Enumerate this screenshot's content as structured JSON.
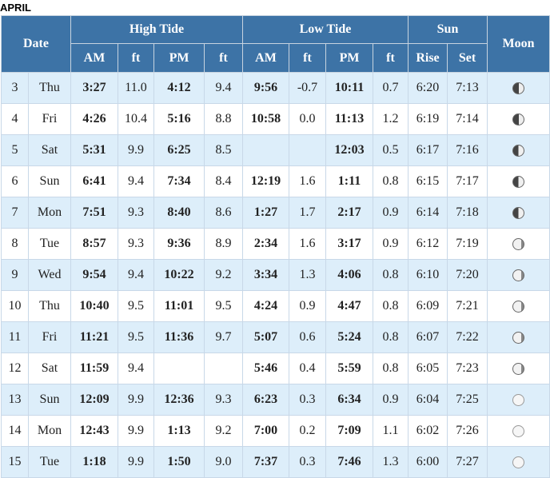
{
  "month": "APRIL",
  "headers": {
    "date": "Date",
    "high_tide": "High Tide",
    "low_tide": "Low Tide",
    "sun": "Sun",
    "moon": "Moon",
    "am": "AM",
    "pm": "PM",
    "ft": "ft",
    "rise": "Rise",
    "set": "Set"
  },
  "rows": [
    {
      "day": "3",
      "dow": "Thu",
      "hi_am": "3:27",
      "hi_am_ft": "11.0",
      "hi_pm": "4:12",
      "hi_pm_ft": "9.4",
      "lo_am": "9:56",
      "lo_am_ft": "-0.7",
      "lo_pm": "10:11",
      "lo_pm_ft": "0.7",
      "rise": "6:20",
      "set": "7:13",
      "moon_icon": "moon-waning-gibbous-icon"
    },
    {
      "day": "4",
      "dow": "Fri",
      "hi_am": "4:26",
      "hi_am_ft": "10.4",
      "hi_pm": "5:16",
      "hi_pm_ft": "8.8",
      "lo_am": "10:58",
      "lo_am_ft": "0.0",
      "lo_pm": "11:13",
      "lo_pm_ft": "1.2",
      "rise": "6:19",
      "set": "7:14",
      "moon_icon": "moon-waning-gibbous-icon"
    },
    {
      "day": "5",
      "dow": "Sat",
      "hi_am": "5:31",
      "hi_am_ft": "9.9",
      "hi_pm": "6:25",
      "hi_pm_ft": "8.5",
      "lo_am": "",
      "lo_am_ft": "",
      "lo_pm": "12:03",
      "lo_pm_ft": "0.5",
      "rise": "6:17",
      "set": "7:16",
      "moon_icon": "moon-last-quarter-icon"
    },
    {
      "day": "6",
      "dow": "Sun",
      "hi_am": "6:41",
      "hi_am_ft": "9.4",
      "hi_pm": "7:34",
      "hi_pm_ft": "8.4",
      "lo_am": "12:19",
      "lo_am_ft": "1.6",
      "lo_pm": "1:11",
      "lo_pm_ft": "0.8",
      "rise": "6:15",
      "set": "7:17",
      "moon_icon": "moon-last-quarter-icon"
    },
    {
      "day": "7",
      "dow": "Mon",
      "hi_am": "7:51",
      "hi_am_ft": "9.3",
      "hi_pm": "8:40",
      "hi_pm_ft": "8.6",
      "lo_am": "1:27",
      "lo_am_ft": "1.7",
      "lo_pm": "2:17",
      "lo_pm_ft": "0.9",
      "rise": "6:14",
      "set": "7:18",
      "moon_icon": "moon-last-quarter-icon"
    },
    {
      "day": "8",
      "dow": "Tue",
      "hi_am": "8:57",
      "hi_am_ft": "9.3",
      "hi_pm": "9:36",
      "hi_pm_ft": "8.9",
      "lo_am": "2:34",
      "lo_am_ft": "1.6",
      "lo_pm": "3:17",
      "lo_pm_ft": "0.9",
      "rise": "6:12",
      "set": "7:19",
      "moon_icon": "moon-waning-crescent-icon"
    },
    {
      "day": "9",
      "dow": "Wed",
      "hi_am": "9:54",
      "hi_am_ft": "9.4",
      "hi_pm": "10:22",
      "hi_pm_ft": "9.2",
      "lo_am": "3:34",
      "lo_am_ft": "1.3",
      "lo_pm": "4:06",
      "lo_pm_ft": "0.8",
      "rise": "6:10",
      "set": "7:20",
      "moon_icon": "moon-waning-crescent-icon"
    },
    {
      "day": "10",
      "dow": "Thu",
      "hi_am": "10:40",
      "hi_am_ft": "9.5",
      "hi_pm": "11:01",
      "hi_pm_ft": "9.5",
      "lo_am": "4:24",
      "lo_am_ft": "0.9",
      "lo_pm": "4:47",
      "lo_pm_ft": "0.8",
      "rise": "6:09",
      "set": "7:21",
      "moon_icon": "moon-waning-crescent-icon"
    },
    {
      "day": "11",
      "dow": "Fri",
      "hi_am": "11:21",
      "hi_am_ft": "9.5",
      "hi_pm": "11:36",
      "hi_pm_ft": "9.7",
      "lo_am": "5:07",
      "lo_am_ft": "0.6",
      "lo_pm": "5:24",
      "lo_pm_ft": "0.8",
      "rise": "6:07",
      "set": "7:22",
      "moon_icon": "moon-waning-crescent-icon"
    },
    {
      "day": "12",
      "dow": "Sat",
      "hi_am": "11:59",
      "hi_am_ft": "9.4",
      "hi_pm": "",
      "hi_pm_ft": "",
      "lo_am": "5:46",
      "lo_am_ft": "0.4",
      "lo_pm": "5:59",
      "lo_pm_ft": "0.8",
      "rise": "6:05",
      "set": "7:23",
      "moon_icon": "moon-waning-crescent-icon"
    },
    {
      "day": "13",
      "dow": "Sun",
      "hi_am": "12:09",
      "hi_am_ft": "9.9",
      "hi_pm": "12:36",
      "hi_pm_ft": "9.3",
      "lo_am": "6:23",
      "lo_am_ft": "0.3",
      "lo_pm": "6:34",
      "lo_pm_ft": "0.9",
      "rise": "6:04",
      "set": "7:25",
      "moon_icon": "moon-new-icon"
    },
    {
      "day": "14",
      "dow": "Mon",
      "hi_am": "12:43",
      "hi_am_ft": "9.9",
      "hi_pm": "1:13",
      "hi_pm_ft": "9.2",
      "lo_am": "7:00",
      "lo_am_ft": "0.2",
      "lo_pm": "7:09",
      "lo_pm_ft": "1.1",
      "rise": "6:02",
      "set": "7:26",
      "moon_icon": "moon-new-icon"
    },
    {
      "day": "15",
      "dow": "Tue",
      "hi_am": "1:18",
      "hi_am_ft": "9.9",
      "hi_pm": "1:50",
      "hi_pm_ft": "9.0",
      "lo_am": "7:37",
      "lo_am_ft": "0.3",
      "lo_pm": "7:46",
      "lo_pm_ft": "1.3",
      "rise": "6:00",
      "set": "7:27",
      "moon_icon": "moon-new-icon"
    }
  ]
}
